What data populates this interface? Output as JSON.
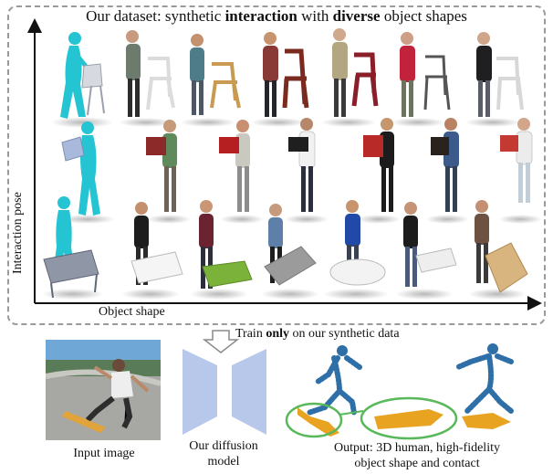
{
  "title": {
    "prefix": "Our dataset: synthetic ",
    "bold1": "interaction",
    "middle": " with ",
    "bold2": "diverse",
    "suffix": " object shapes"
  },
  "axes": {
    "y_label": "Interaction pose",
    "x_label": "Object shape"
  },
  "train": {
    "prefix": "Train ",
    "bold": "only",
    "suffix": " on our synthetic data"
  },
  "captions": {
    "input": "Input image",
    "model_line1": "Our diffusion",
    "model_line2": "model",
    "output_line1": "Output: 3D human, high-fidelity",
    "output_line2": "object shape and contact"
  },
  "colors": {
    "frame": "#9a9a9a",
    "cyan_human": "#25c4d2",
    "diffusion_model": "#b7c8ea",
    "blue_points": "#2f6fa8",
    "contact_orange": "#e8a321",
    "contact_green_ellipse": "#58b85a"
  }
}
